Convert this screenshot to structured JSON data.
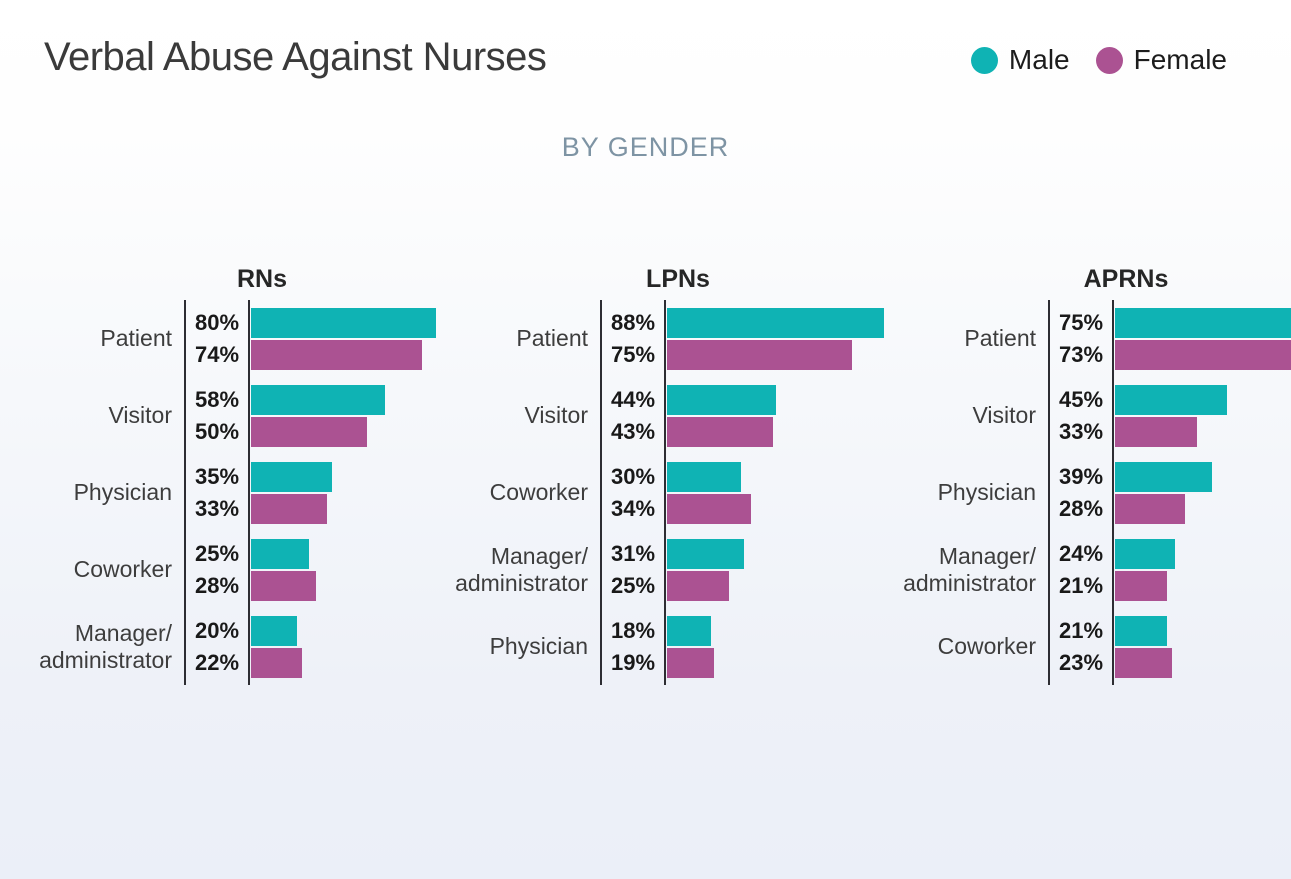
{
  "title": "Verbal Abuse Against Nurses",
  "subtitle": "BY GENDER",
  "legend": {
    "position": "top-right",
    "items": [
      {
        "label": "Male",
        "color": "#0fb3b4"
      },
      {
        "label": "Female",
        "color": "#ab5292"
      }
    ]
  },
  "colors": {
    "male": "#0fb3b4",
    "female": "#ab5292",
    "title_text": "#3a3a3a",
    "subtitle_text": "#7e94a4",
    "axis_line": "#2d2d33",
    "value_text": "#191919",
    "category_text": "#3d3d3d"
  },
  "chart_data": [
    {
      "type": "bar",
      "orientation": "horizontal",
      "title": "RNs",
      "unit": "%",
      "xlim": [
        0,
        100
      ],
      "grid": false,
      "value_labels": "left of bars",
      "categories": [
        "Patient",
        "Visitor",
        "Physician",
        "Coworker",
        "Manager/administrator"
      ],
      "series": [
        {
          "name": "Male",
          "values": [
            80,
            58,
            35,
            25,
            20
          ]
        },
        {
          "name": "Female",
          "values": [
            74,
            50,
            33,
            28,
            22
          ]
        }
      ]
    },
    {
      "type": "bar",
      "orientation": "horizontal",
      "title": "LPNs",
      "unit": "%",
      "xlim": [
        0,
        100
      ],
      "grid": false,
      "value_labels": "left of bars",
      "categories": [
        "Patient",
        "Visitor",
        "Coworker",
        "Manager/administrator",
        "Physician"
      ],
      "series": [
        {
          "name": "Male",
          "values": [
            88,
            44,
            30,
            31,
            18
          ]
        },
        {
          "name": "Female",
          "values": [
            75,
            43,
            34,
            25,
            19
          ]
        }
      ]
    },
    {
      "type": "bar",
      "orientation": "horizontal",
      "title": "APRNs",
      "unit": "%",
      "xlim": [
        0,
        100
      ],
      "grid": false,
      "value_labels": "left of bars",
      "categories": [
        "Patient",
        "Visitor",
        "Physician",
        "Manager/administrator",
        "Coworker"
      ],
      "series": [
        {
          "name": "Male",
          "values": [
            75,
            45,
            39,
            24,
            21
          ]
        },
        {
          "name": "Female",
          "values": [
            73,
            33,
            28,
            21,
            23
          ]
        }
      ]
    }
  ]
}
